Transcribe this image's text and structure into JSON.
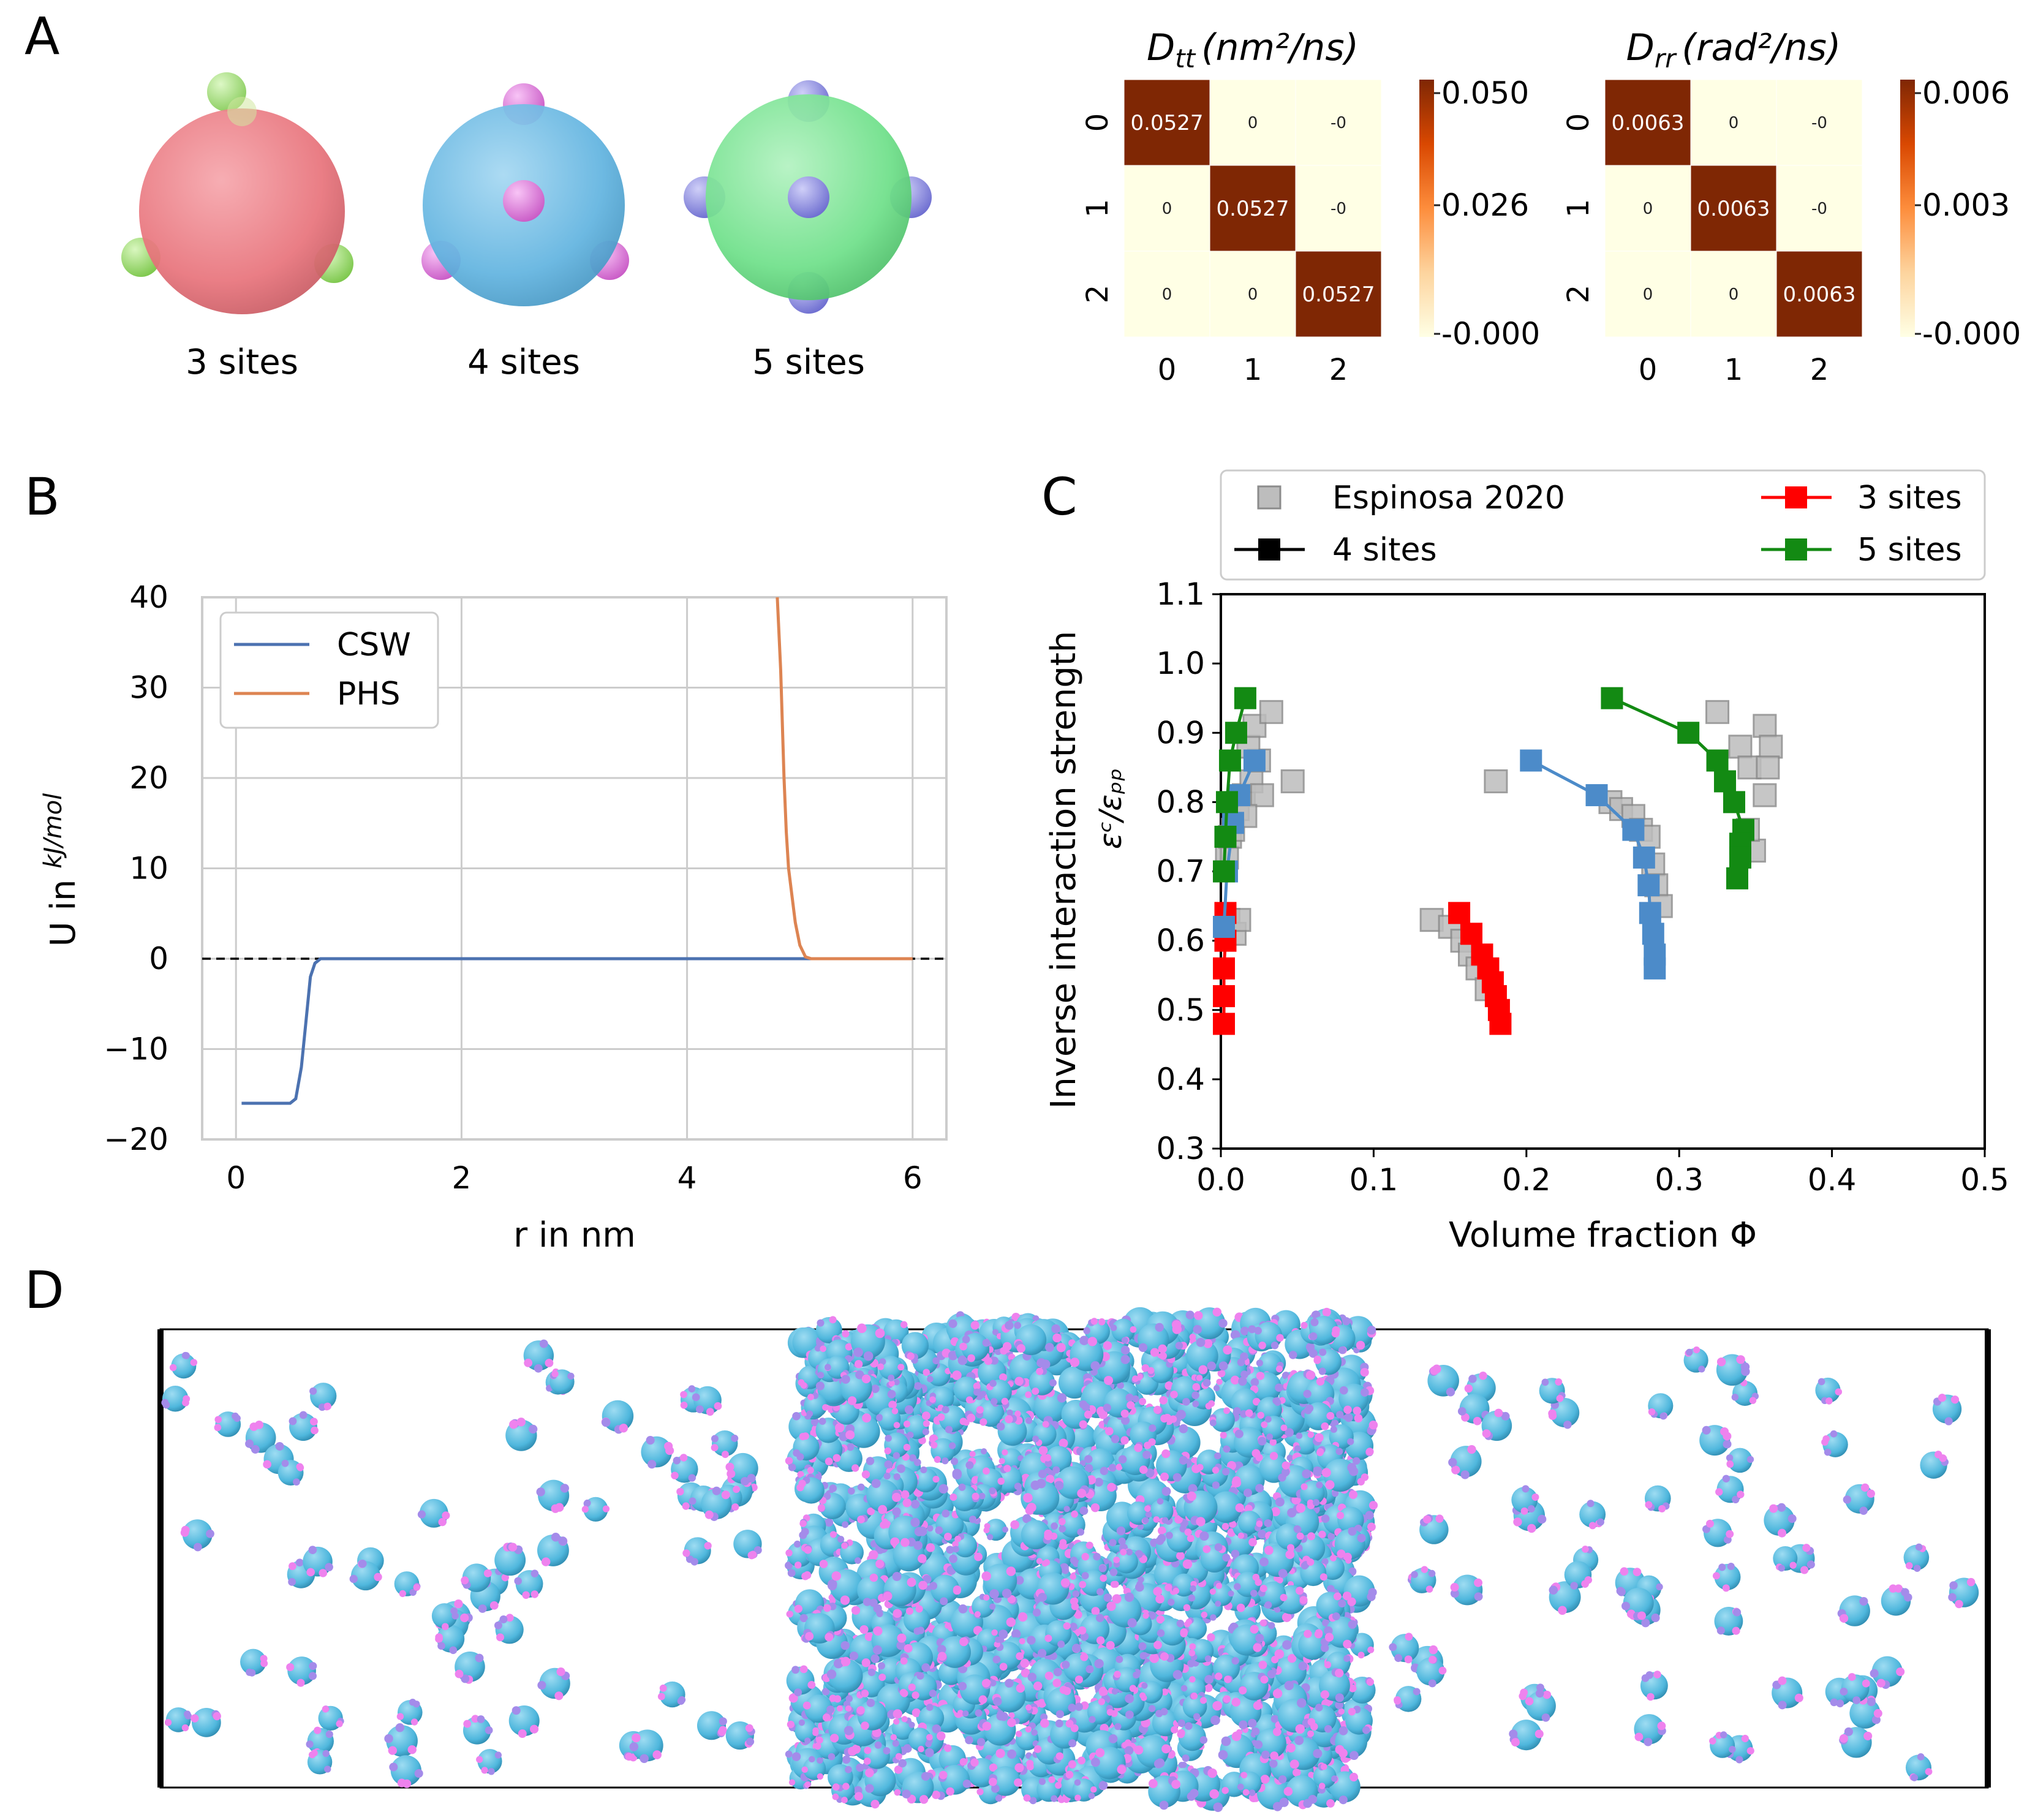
{
  "panel_labels": [
    "A",
    "B",
    "C",
    "D"
  ],
  "molecule_labels": [
    "3 sites",
    "4 sites",
    "5 sites"
  ],
  "colors": {
    "sphere3": "#e8747c",
    "site3": "#9be36b",
    "sphere4": "#62b4e0",
    "site4": "#e77be3",
    "sphere5": "#6fe08a",
    "site5": "#8f8fe8",
    "heat_hi": "#7f2704",
    "heat_mid": "#f6a34a",
    "heat_lo": "#ffffe5",
    "csw": "#4c72b0",
    "phs": "#dd8452",
    "espinosa": "#bdbdbd",
    "red": "#ff0000",
    "blue": "#4c8bc9",
    "green": "#138a13",
    "particle": "#4fb7dd",
    "particle_site": "#ee82ee"
  },
  "chart_data": [
    {
      "type": "heatmap",
      "title": "D_tt (nm²/ns)",
      "title_main": "D",
      "title_sub": "tt",
      "title_rest": "(nm²/ns)",
      "row_labels": [
        "0",
        "1",
        "2"
      ],
      "col_labels": [
        "0",
        "1",
        "2"
      ],
      "values": [
        [
          0.0527,
          0,
          0
        ],
        [
          0,
          0.0527,
          0
        ],
        [
          0,
          0,
          0.0527
        ]
      ],
      "cell_text": [
        [
          "0.0527",
          "0",
          "-0"
        ],
        [
          "0",
          "0.0527",
          "-0"
        ],
        [
          "0",
          "0",
          "0.0527"
        ]
      ],
      "colorbar_ticks": [
        "0.050",
        "0.026",
        "-0.000"
      ],
      "colorbar_range": [
        0,
        0.0527
      ]
    },
    {
      "type": "heatmap",
      "title": "D_rr (rad²/ns)",
      "title_main": "D",
      "title_sub": "rr",
      "title_rest": "(rad²/ns)",
      "row_labels": [
        "0",
        "1",
        "2"
      ],
      "col_labels": [
        "0",
        "1",
        "2"
      ],
      "values": [
        [
          0.0063,
          0,
          0
        ],
        [
          0,
          0.0063,
          0
        ],
        [
          0,
          0,
          0.0063
        ]
      ],
      "cell_text": [
        [
          "0.0063",
          "0",
          "-0"
        ],
        [
          "0",
          "0.0063",
          "-0"
        ],
        [
          "0",
          "0",
          "0.0063"
        ]
      ],
      "colorbar_ticks": [
        "0.006",
        "0.003",
        "-0.000"
      ],
      "colorbar_range": [
        0,
        0.0063
      ]
    },
    {
      "type": "line",
      "xlabel": "r in nm",
      "ylabel_prefix": "U in",
      "ylabel_frac_num": "kJ",
      "ylabel_frac_den": "mol",
      "xlim": [
        -0.3,
        6.3
      ],
      "ylim": [
        -20,
        40
      ],
      "xticks": [
        0,
        2,
        4,
        6
      ],
      "yticks": [
        -20,
        -10,
        0,
        10,
        20,
        30,
        40
      ],
      "ytick_labels": [
        "−20",
        "−10",
        "0",
        "10",
        "20",
        "30",
        "40"
      ],
      "grid": true,
      "legend_position": "top-left",
      "series": [
        {
          "name": "CSW",
          "x": [
            0.05,
            0.3,
            0.48,
            0.53,
            0.58,
            0.62,
            0.66,
            0.7,
            0.75,
            0.85,
            6.0
          ],
          "y": [
            -16,
            -16,
            -16,
            -15.5,
            -12,
            -7,
            -2,
            -0.5,
            0,
            0,
            0
          ]
        },
        {
          "name": "PHS",
          "x": [
            4.8,
            4.83,
            4.86,
            4.88,
            4.9,
            4.93,
            4.96,
            5.0,
            5.05,
            5.1,
            6.0
          ],
          "y": [
            40,
            32,
            20,
            14,
            10,
            7,
            4,
            1.5,
            0.2,
            0,
            0
          ]
        }
      ],
      "hline_y": 0
    },
    {
      "type": "scatter",
      "xlabel": "Volume fraction Φ",
      "ylabel": "Inverse interaction strength",
      "ylabel2": "ε^C/ε_pp",
      "xlim": [
        0,
        0.5
      ],
      "ylim": [
        0.3,
        1.1
      ],
      "xticks": [
        "0.0",
        "0.1",
        "0.2",
        "0.3",
        "0.4",
        "0.5"
      ],
      "yticks": [
        "0.3",
        "0.4",
        "0.5",
        "0.6",
        "0.7",
        "0.8",
        "0.9",
        "1.0",
        "1.1"
      ],
      "legend_position": "above",
      "legend": [
        "Espinosa 2020",
        "4 sites",
        "3 sites",
        "5 sites"
      ],
      "series": [
        {
          "name": "Espinosa 2020",
          "kind": "markers",
          "points": [
            [
              0.005,
              0.63
            ],
            [
              0.009,
              0.61
            ],
            [
              0.012,
              0.63
            ],
            [
              0.004,
              0.72
            ],
            [
              0.006,
              0.75
            ],
            [
              0.008,
              0.76
            ],
            [
              0.011,
              0.79
            ],
            [
              0.015,
              0.81
            ],
            [
              0.02,
              0.83
            ],
            [
              0.025,
              0.86
            ],
            [
              0.018,
              0.88
            ],
            [
              0.022,
              0.91
            ],
            [
              0.033,
              0.93
            ],
            [
              0.047,
              0.83
            ],
            [
              0.027,
              0.81
            ],
            [
              0.016,
              0.78
            ],
            [
              0.138,
              0.63
            ],
            [
              0.15,
              0.62
            ],
            [
              0.158,
              0.6
            ],
            [
              0.163,
              0.58
            ],
            [
              0.168,
              0.56
            ],
            [
              0.174,
              0.53
            ],
            [
              0.18,
              0.83
            ],
            [
              0.255,
              0.8
            ],
            [
              0.262,
              0.79
            ],
            [
              0.27,
              0.78
            ],
            [
              0.275,
              0.76
            ],
            [
              0.28,
              0.75
            ],
            [
              0.283,
              0.71
            ],
            [
              0.285,
              0.68
            ],
            [
              0.288,
              0.65
            ],
            [
              0.325,
              0.93
            ],
            [
              0.34,
              0.88
            ],
            [
              0.346,
              0.85
            ],
            [
              0.356,
              0.91
            ],
            [
              0.36,
              0.88
            ],
            [
              0.358,
              0.85
            ],
            [
              0.356,
              0.81
            ],
            [
              0.349,
              0.73
            ],
            [
              0.345,
              0.76
            ]
          ]
        },
        {
          "name": "3 sites",
          "kind": "line",
          "color_key": "red",
          "segments": [
            [
              [
                0.003,
                0.64
              ],
              [
                0.003,
                0.6
              ],
              [
                0.002,
                0.56
              ],
              [
                0.002,
                0.52
              ],
              [
                0.002,
                0.48
              ]
            ],
            [
              [
                0.156,
                0.64
              ],
              [
                0.164,
                0.61
              ],
              [
                0.171,
                0.58
              ],
              [
                0.175,
                0.56
              ],
              [
                0.178,
                0.54
              ],
              [
                0.18,
                0.52
              ],
              [
                0.182,
                0.5
              ],
              [
                0.183,
                0.48
              ]
            ]
          ]
        },
        {
          "name": "4 sites",
          "kind": "line",
          "color_key": "blue",
          "segments": [
            [
              [
                0.002,
                0.62
              ],
              [
                0.004,
                0.7
              ],
              [
                0.008,
                0.77
              ],
              [
                0.012,
                0.81
              ],
              [
                0.022,
                0.86
              ]
            ],
            [
              [
                0.203,
                0.86
              ],
              [
                0.246,
                0.81
              ],
              [
                0.27,
                0.76
              ],
              [
                0.277,
                0.72
              ],
              [
                0.28,
                0.68
              ],
              [
                0.281,
                0.64
              ],
              [
                0.283,
                0.61
              ],
              [
                0.284,
                0.58
              ],
              [
                0.284,
                0.56
              ]
            ]
          ]
        },
        {
          "name": "5 sites",
          "kind": "line",
          "color_key": "green",
          "segments": [
            [
              [
                0.002,
                0.7
              ],
              [
                0.003,
                0.75
              ],
              [
                0.004,
                0.8
              ],
              [
                0.006,
                0.86
              ],
              [
                0.01,
                0.9
              ],
              [
                0.016,
                0.95
              ]
            ],
            [
              [
                0.256,
                0.95
              ],
              [
                0.306,
                0.9
              ],
              [
                0.325,
                0.86
              ],
              [
                0.33,
                0.83
              ],
              [
                0.336,
                0.8
              ],
              [
                0.342,
                0.76
              ],
              [
                0.34,
                0.74
              ],
              [
                0.34,
                0.72
              ],
              [
                0.338,
                0.69
              ]
            ]
          ]
        }
      ]
    }
  ]
}
